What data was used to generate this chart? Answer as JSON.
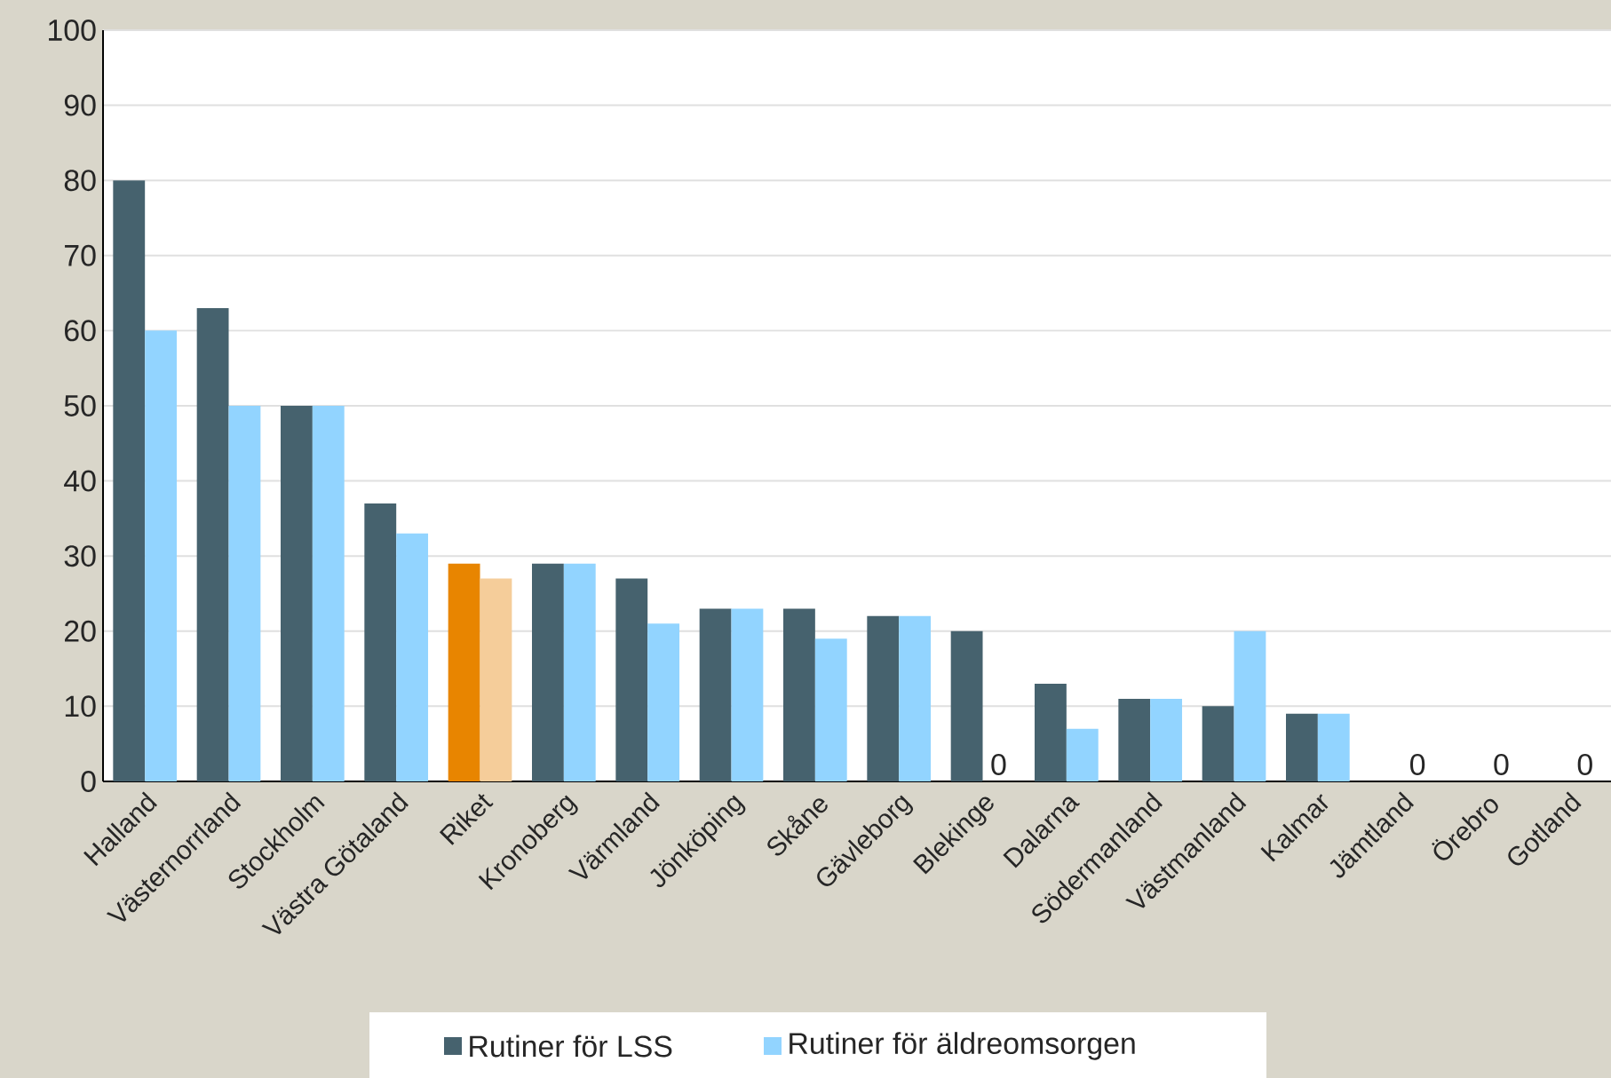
{
  "chart_data": {
    "type": "bar",
    "categories": [
      "Halland",
      "Västernorrland",
      "Stockholm",
      "Västra Götaland",
      "Riket",
      "Kronoberg",
      "Värmland",
      "Jönköping",
      "Skåne",
      "Gävleborg",
      "Blekinge",
      "Dalarna",
      "Södermanland",
      "Västmanland",
      "Kalmar",
      "Jämtland",
      "Örebro",
      "Gotland"
    ],
    "series": [
      {
        "name": "Rutiner för LSS",
        "color": "#46626e",
        "colors": [
          "#46626e",
          "#46626e",
          "#46626e",
          "#46626e",
          "#e88500",
          "#46626e",
          "#46626e",
          "#46626e",
          "#46626e",
          "#46626e",
          "#46626e",
          "#46626e",
          "#46626e",
          "#46626e",
          "#46626e",
          "#46626e",
          "#46626e",
          "#46626e"
        ],
        "values": [
          80,
          63,
          50,
          37,
          29,
          29,
          27,
          23,
          23,
          22,
          20,
          13,
          11,
          10,
          9,
          0,
          0,
          0
        ]
      },
      {
        "name": "Rutiner för äldreomsorgen",
        "color": "#92d4ff",
        "colors": [
          "#92d4ff",
          "#92d4ff",
          "#92d4ff",
          "#92d4ff",
          "#f5cd9a",
          "#92d4ff",
          "#92d4ff",
          "#92d4ff",
          "#92d4ff",
          "#92d4ff",
          "#92d4ff",
          "#92d4ff",
          "#92d4ff",
          "#92d4ff",
          "#92d4ff",
          "#92d4ff",
          "#92d4ff",
          "#92d4ff"
        ],
        "values": [
          60,
          50,
          50,
          33,
          27,
          29,
          21,
          23,
          19,
          22,
          0,
          7,
          11,
          20,
          9,
          0,
          0,
          0
        ],
        "value_labels": [
          null,
          null,
          null,
          null,
          null,
          null,
          null,
          null,
          null,
          null,
          "0",
          null,
          null,
          null,
          null,
          "0",
          "0",
          "0"
        ]
      }
    ],
    "ylim": [
      0,
      100
    ],
    "yticks": [
      0,
      10,
      20,
      30,
      40,
      50,
      60,
      70,
      80,
      90,
      100
    ],
    "grid": "y",
    "legend": "bottom"
  }
}
